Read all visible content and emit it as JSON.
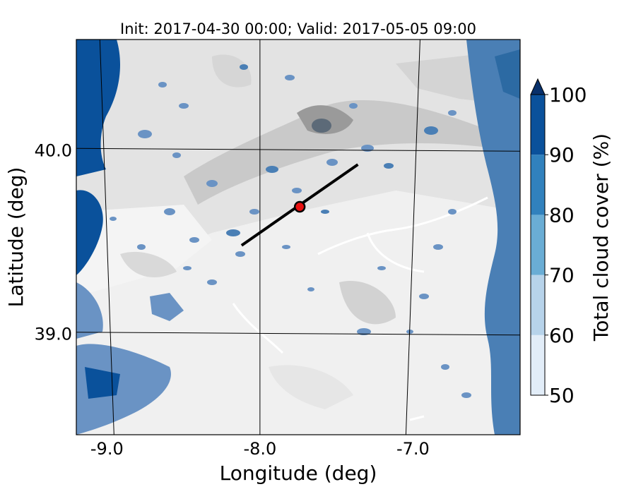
{
  "title": "Init: 2017-04-30 00:00; Valid: 2017-05-05 09:00",
  "map": {
    "xlabel": "Longitude (deg)",
    "ylabel": "Latitude (deg)",
    "xlim": [
      -9.2,
      -6.3
    ],
    "ylim": [
      38.45,
      40.6
    ],
    "longitude_ticks": [
      {
        "value": -9.0,
        "label": "-9.0"
      },
      {
        "value": -8.0,
        "label": "-8.0"
      },
      {
        "value": -7.0,
        "label": "-7.0"
      }
    ],
    "latitude_ticks": [
      {
        "value": 40.0,
        "label": "40.0"
      },
      {
        "value": 39.0,
        "label": "39.0"
      }
    ],
    "cross_section": {
      "start": {
        "lon": -8.12,
        "lat": 39.48
      },
      "end": {
        "lon": -7.36,
        "lat": 39.92
      },
      "color": "#000000"
    },
    "site_marker": {
      "lon": -7.74,
      "lat": 39.69,
      "fill": "#e81010",
      "edge": "#000000"
    },
    "terrain_shading": "grey",
    "grid": true
  },
  "colorbar": {
    "label": "Total cloud cover (%)",
    "extend": "max",
    "levels": [
      50,
      60,
      70,
      80,
      90,
      100
    ],
    "tick_labels": [
      "50",
      "60",
      "70",
      "80",
      "90",
      "100"
    ],
    "colors": [
      "#e2edf8",
      "#b7d3ea",
      "#6aadd5",
      "#3181bd",
      "#0a519b",
      "#08306b"
    ]
  }
}
